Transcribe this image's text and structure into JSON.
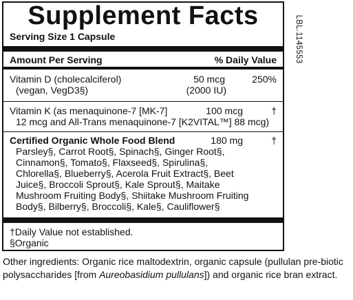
{
  "title": "Supplement Facts",
  "serving_size": "Serving Size 1 Capsule",
  "header": {
    "amount": "Amount Per Serving",
    "dv": "% Daily Value"
  },
  "items": [
    {
      "name": "Vitamin D (cholecalciferol)",
      "sub": "(vegan, VegD3§)",
      "amount": "50 mcg",
      "amount_sub": "(2000 IU)",
      "dv": "250%"
    },
    {
      "name": "Vitamin K (as menaquinone-7 [MK-7]",
      "sub": "12 mcg and All-Trans menaquinone-7 [K2VITAL™] 88 mcg)",
      "amount": "100 mcg",
      "dv": "†"
    },
    {
      "name": "Certified Organic Whole Food Blend",
      "amount": "180 mg",
      "dv": "†",
      "lines": [
        "Parsley§, Carrot Root§, Spinach§, Ginger Root§,",
        "Cinnamon§, Tomato§, Flaxseed§, Spirulina§,",
        "Chlorella§, Blueberry§, Acerola Fruit Extract§, Beet",
        "Juice§, Broccoli Sprout§, Kale Sprout§, Maitake",
        "Mushroom Fruiting Body§, Shiitake Mushroom Fruiting",
        "Body§, Bilberry§, Broccoli§, Kale§, Cauliflower§"
      ]
    }
  ],
  "footnotes": [
    "†Daily Value not established.",
    "§Organic"
  ],
  "label_code": "LBL.1145553",
  "other": {
    "before": "Other ingredients: Organic rice maltodextrin, organic capsule (pullulan pre-biotic polysaccharides [from ",
    "italic": "Aureobasidium pullulans",
    "after": "]) and organic rice bran extract."
  }
}
